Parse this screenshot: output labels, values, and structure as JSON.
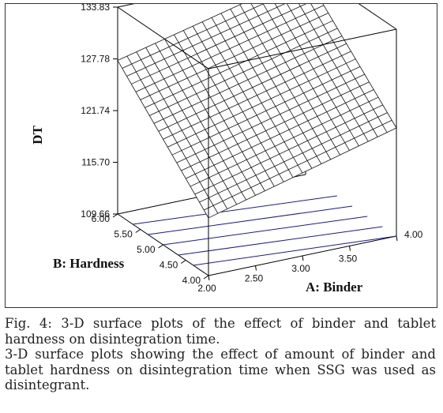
{
  "chart_data": {
    "type": "surface3d",
    "title": "",
    "xlabel": "A: Binder",
    "ylabel": "B: Hardness",
    "zlabel": "DT",
    "x_ticks": [
      "2.00",
      "2.50",
      "3.00",
      "3.50",
      "4.00"
    ],
    "y_ticks": [
      "4.00",
      "4.50",
      "5.00",
      "5.50",
      "6.00"
    ],
    "z_ticks": [
      "109.66",
      "115.70",
      "121.74",
      "127.78",
      "133.83"
    ],
    "xlim": [
      2.0,
      4.0
    ],
    "ylim": [
      4.0,
      6.0
    ],
    "zlim": [
      109.66,
      133.83
    ],
    "grid_divisions": 20,
    "surface_corners": {
      "binder_2_hardness_4": 116.4,
      "binder_4_hardness_4": 122.3,
      "binder_2_hardness_6": 127.6,
      "binder_4_hardness_6": 133.0
    },
    "floor_contour_count": 5
  },
  "caption": {
    "line1": "Fig. 4: 3-D surface plots of the effect of binder and tablet hardness on disintegration time.",
    "line2": "3-D surface plots showing the effect of amount of binder and tablet hardness on disintegration time when SSG was used as disintegrant."
  }
}
